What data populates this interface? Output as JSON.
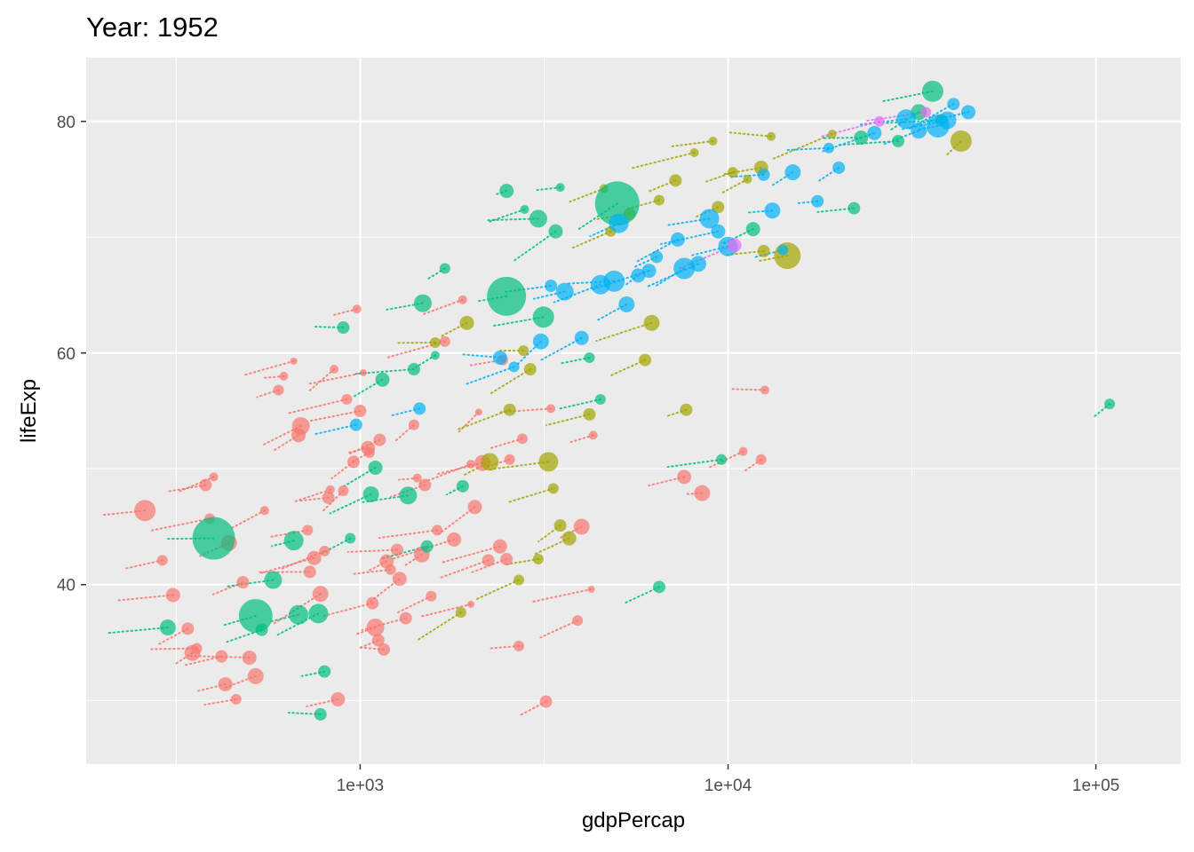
{
  "chart_data": {
    "type": "scatter",
    "title": "Year: 1952",
    "xlabel": "gdpPercap",
    "ylabel": "lifeExp",
    "x_scale": "log10",
    "xlim": [
      180,
      170000
    ],
    "ylim": [
      24.5,
      85.5
    ],
    "x_ticks": [
      {
        "value": 1000,
        "label": "1e+03"
      },
      {
        "value": 10000,
        "label": "1e+04"
      },
      {
        "value": 100000,
        "label": "1e+05"
      }
    ],
    "y_ticks": [
      {
        "value": 40,
        "label": "40"
      },
      {
        "value": 60,
        "label": "60"
      },
      {
        "value": 80,
        "label": "80"
      }
    ],
    "grid": true,
    "legend": "none",
    "colors": {
      "panel": "#ebebeb",
      "grid": "#ffffff",
      "Africa": "#f8766d",
      "Americas": "#a3a500",
      "Asia": "#00bf7d",
      "Europe": "#00b0f6",
      "Oceania": "#e76bf3"
    },
    "point_opacity": 0.7,
    "series": [
      {
        "group": "Africa",
        "points": [
          [
            260,
            46.4,
            12
          ],
          [
            290,
            42.1,
            6
          ],
          [
            310,
            39.1,
            8
          ],
          [
            340,
            36.2,
            7
          ],
          [
            350,
            34.1,
            9
          ],
          [
            360,
            34.5,
            6
          ],
          [
            380,
            48.6,
            7
          ],
          [
            390,
            45.7,
            6
          ],
          [
            400,
            49.3,
            5
          ],
          [
            420,
            33.8,
            7
          ],
          [
            430,
            31.4,
            8
          ],
          [
            440,
            43.6,
            9
          ],
          [
            460,
            30.1,
            6
          ],
          [
            480,
            40.2,
            7
          ],
          [
            500,
            33.7,
            8
          ],
          [
            520,
            32.1,
            9
          ],
          [
            550,
            46.4,
            5
          ],
          [
            600,
            56.8,
            6
          ],
          [
            620,
            58.0,
            5
          ],
          [
            660,
            59.3,
            4
          ],
          [
            680,
            52.9,
            8
          ],
          [
            690,
            53.7,
            10
          ],
          [
            720,
            44.7,
            6
          ],
          [
            730,
            41.1,
            7
          ],
          [
            750,
            42.3,
            8
          ],
          [
            780,
            39.2,
            9
          ],
          [
            800,
            42.9,
            6
          ],
          [
            820,
            47.5,
            7
          ],
          [
            830,
            48.2,
            5
          ],
          [
            850,
            58.6,
            5
          ],
          [
            870,
            30.1,
            8
          ],
          [
            900,
            48.1,
            6
          ],
          [
            920,
            56.0,
            6
          ],
          [
            960,
            50.6,
            7
          ],
          [
            980,
            63.8,
            5
          ],
          [
            1000,
            55.0,
            7
          ],
          [
            1020,
            58.3,
            4
          ],
          [
            1050,
            51.8,
            8
          ],
          [
            1060,
            51.4,
            6
          ],
          [
            1080,
            38.4,
            7
          ],
          [
            1100,
            36.3,
            10
          ],
          [
            1120,
            35.2,
            7
          ],
          [
            1130,
            52.5,
            7
          ],
          [
            1160,
            34.4,
            7
          ],
          [
            1180,
            42.0,
            8
          ],
          [
            1210,
            41.3,
            6
          ],
          [
            1260,
            43.0,
            7
          ],
          [
            1280,
            40.5,
            8
          ],
          [
            1330,
            37.1,
            7
          ],
          [
            1400,
            53.8,
            6
          ],
          [
            1430,
            49.2,
            5
          ],
          [
            1470,
            42.6,
            9
          ],
          [
            1500,
            48.6,
            7
          ],
          [
            1560,
            39.0,
            6
          ],
          [
            1620,
            44.7,
            6
          ],
          [
            1700,
            61.0,
            6
          ],
          [
            1800,
            43.9,
            8
          ],
          [
            1900,
            64.6,
            5
          ],
          [
            2000,
            50.4,
            5
          ],
          [
            2050,
            46.7,
            8
          ],
          [
            2100,
            54.9,
            4
          ],
          [
            2150,
            50.5,
            9
          ],
          [
            2230,
            42.1,
            7
          ],
          [
            2400,
            43.3,
            8
          ],
          [
            2440,
            59.4,
            6
          ],
          [
            2500,
            42.2,
            7
          ],
          [
            2550,
            50.8,
            6
          ],
          [
            2700,
            34.7,
            6
          ],
          [
            2760,
            52.6,
            6
          ],
          [
            3200,
            29.9,
            7
          ],
          [
            3300,
            55.2,
            5
          ],
          [
            3900,
            36.9,
            6
          ],
          [
            4000,
            45.0,
            9
          ],
          [
            4250,
            39.6,
            4
          ],
          [
            4300,
            52.9,
            5
          ],
          [
            7600,
            49.3,
            8
          ],
          [
            8500,
            47.9,
            9
          ],
          [
            11000,
            51.5,
            5
          ],
          [
            12300,
            50.8,
            6
          ],
          [
            12600,
            56.8,
            5
          ],
          [
            2000,
            38.3,
            4
          ]
        ]
      },
      {
        "group": "Americas",
        "points": [
          [
            1600,
            60.9,
            6
          ],
          [
            1950,
            62.6,
            8
          ],
          [
            2250,
            50.6,
            10
          ],
          [
            2550,
            55.1,
            7
          ],
          [
            2700,
            40.4,
            6
          ],
          [
            2780,
            60.2,
            6
          ],
          [
            2900,
            58.6,
            7
          ],
          [
            3050,
            42.2,
            6
          ],
          [
            3250,
            50.6,
            11
          ],
          [
            3350,
            48.3,
            6
          ],
          [
            3500,
            45.1,
            7
          ],
          [
            3700,
            44.0,
            8
          ],
          [
            4200,
            54.7,
            7
          ],
          [
            4600,
            74.2,
            5
          ],
          [
            4800,
            70.5,
            6
          ],
          [
            5400,
            72.0,
            7
          ],
          [
            5950,
            59.4,
            7
          ],
          [
            6200,
            62.6,
            9
          ],
          [
            6500,
            73.2,
            6
          ],
          [
            7200,
            74.9,
            7
          ],
          [
            7700,
            55.1,
            7
          ],
          [
            8100,
            77.3,
            5
          ],
          [
            9100,
            78.3,
            5
          ],
          [
            9400,
            72.6,
            7
          ],
          [
            10300,
            75.6,
            6
          ],
          [
            11300,
            75.0,
            5
          ],
          [
            12300,
            76.0,
            8
          ],
          [
            12500,
            68.8,
            7
          ],
          [
            13100,
            78.7,
            5
          ],
          [
            14500,
            68.4,
            15
          ],
          [
            19200,
            78.9,
            5
          ],
          [
            43000,
            78.3,
            12
          ],
          [
            1880,
            37.6,
            6
          ]
        ]
      },
      {
        "group": "Asia",
        "points": [
          [
            300,
            36.3,
            9
          ],
          [
            400,
            44.0,
            24
          ],
          [
            520,
            37.3,
            19
          ],
          [
            540,
            36.1,
            7
          ],
          [
            580,
            40.4,
            10
          ],
          [
            660,
            43.8,
            11
          ],
          [
            680,
            37.4,
            11
          ],
          [
            770,
            37.5,
            11
          ],
          [
            780,
            28.8,
            7
          ],
          [
            800,
            32.5,
            7
          ],
          [
            900,
            62.2,
            7
          ],
          [
            940,
            44.0,
            6
          ],
          [
            1070,
            47.8,
            9
          ],
          [
            1100,
            50.1,
            8
          ],
          [
            1150,
            57.7,
            8
          ],
          [
            1350,
            47.7,
            10
          ],
          [
            1400,
            58.6,
            7
          ],
          [
            1480,
            64.3,
            10
          ],
          [
            1520,
            43.3,
            7
          ],
          [
            1600,
            59.8,
            5
          ],
          [
            1700,
            67.3,
            6
          ],
          [
            1900,
            48.5,
            7
          ],
          [
            2500,
            64.9,
            22
          ],
          [
            2800,
            72.4,
            5
          ],
          [
            3050,
            71.6,
            10
          ],
          [
            3150,
            63.1,
            12
          ],
          [
            3400,
            70.5,
            8
          ],
          [
            4200,
            59.6,
            6
          ],
          [
            5000,
            72.9,
            25
          ],
          [
            6500,
            39.8,
            7
          ],
          [
            9600,
            50.8,
            6
          ],
          [
            11700,
            70.7,
            8
          ],
          [
            22000,
            72.5,
            7
          ],
          [
            23000,
            78.6,
            8
          ],
          [
            29000,
            78.3,
            7
          ],
          [
            33000,
            80.8,
            9
          ],
          [
            36000,
            82.6,
            12
          ],
          [
            38000,
            80.1,
            7
          ],
          [
            109000,
            55.6,
            6
          ],
          [
            4500,
            56.0,
            6
          ],
          [
            3500,
            74.3,
            5
          ],
          [
            2500,
            74.0,
            8
          ]
        ]
      },
      {
        "group": "Europe",
        "points": [
          [
            975,
            53.8,
            7
          ],
          [
            1450,
            55.2,
            7
          ],
          [
            2400,
            59.6,
            8
          ],
          [
            2620,
            58.8,
            6
          ],
          [
            3100,
            61.0,
            9
          ],
          [
            3300,
            65.8,
            7
          ],
          [
            3600,
            65.3,
            10
          ],
          [
            4000,
            61.3,
            8
          ],
          [
            4500,
            65.9,
            11
          ],
          [
            4900,
            66.2,
            12
          ],
          [
            5050,
            71.2,
            11
          ],
          [
            5300,
            64.2,
            9
          ],
          [
            5700,
            66.7,
            8
          ],
          [
            6100,
            67.1,
            8
          ],
          [
            6400,
            68.3,
            7
          ],
          [
            7300,
            69.8,
            8
          ],
          [
            7600,
            67.3,
            12
          ],
          [
            8300,
            67.7,
            9
          ],
          [
            8900,
            71.6,
            11
          ],
          [
            9400,
            70.5,
            8
          ],
          [
            10000,
            69.2,
            11
          ],
          [
            12500,
            75.4,
            7
          ],
          [
            13200,
            72.3,
            9
          ],
          [
            14100,
            68.9,
            6
          ],
          [
            15000,
            75.6,
            9
          ],
          [
            17500,
            73.1,
            7
          ],
          [
            18800,
            77.7,
            6
          ],
          [
            20000,
            76.0,
            7
          ],
          [
            25000,
            79.0,
            8
          ],
          [
            30500,
            80.2,
            11
          ],
          [
            33000,
            79.2,
            9
          ],
          [
            37200,
            79.6,
            13
          ],
          [
            39500,
            80.1,
            10
          ],
          [
            41000,
            81.5,
            7
          ],
          [
            45000,
            80.8,
            8
          ]
        ]
      },
      {
        "group": "Oceania",
        "points": [
          [
            10400,
            69.3,
            8
          ],
          [
            25800,
            80.0,
            6
          ],
          [
            34500,
            80.8,
            6
          ]
        ]
      }
    ]
  }
}
